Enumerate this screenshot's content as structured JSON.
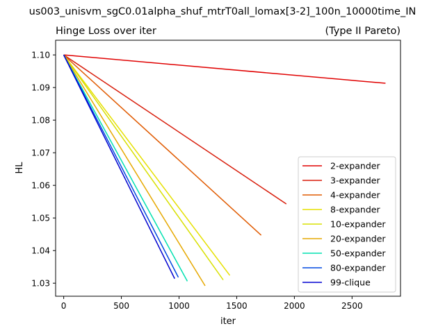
{
  "chart_data": {
    "type": "line",
    "suptitle": "us003_unisvm_sgC0.01alpha_shuf_mtrT0all_lomax[3-2]_100n_10000time_IN",
    "title_left": "Hinge Loss over iter",
    "title_right": "(Type II Pareto)",
    "xlabel": "iter",
    "ylabel": "HL",
    "xlim": [
      -70,
      2920
    ],
    "ylim": [
      1.026,
      1.1045
    ],
    "xticks": [
      0,
      500,
      1000,
      1500,
      2000,
      2500
    ],
    "xtick_labels": [
      "0",
      "500",
      "1000",
      "1500",
      "2000",
      "2500"
    ],
    "yticks": [
      1.03,
      1.04,
      1.05,
      1.06,
      1.07,
      1.08,
      1.09,
      1.1
    ],
    "ytick_labels": [
      "1.03",
      "1.04",
      "1.05",
      "1.06",
      "1.07",
      "1.08",
      "1.09",
      "1.10"
    ],
    "grid": false,
    "legend_position": "lower-right",
    "series": [
      {
        "name": "2-expander",
        "color": "#e00000",
        "x": [
          0,
          2790
        ],
        "y": [
          1.1,
          1.0913
        ]
      },
      {
        "name": "3-expander",
        "color": "#d81c0a",
        "x": [
          0,
          1930
        ],
        "y": [
          1.1,
          1.0543
        ]
      },
      {
        "name": "4-expander",
        "color": "#e05a00",
        "x": [
          0,
          1712
        ],
        "y": [
          1.1,
          1.0447
        ]
      },
      {
        "name": "8-expander",
        "color": "#e6e000",
        "x": [
          0,
          1440
        ],
        "y": [
          1.1,
          1.0324
        ]
      },
      {
        "name": "10-expander",
        "color": "#d8e000",
        "x": [
          0,
          1383
        ],
        "y": [
          1.1,
          1.031
        ]
      },
      {
        "name": "20-expander",
        "color": "#e6a800",
        "x": [
          0,
          1226
        ],
        "y": [
          1.1,
          1.0292
        ]
      },
      {
        "name": "50-expander",
        "color": "#00e0b0",
        "x": [
          0,
          1072
        ],
        "y": [
          1.1,
          1.0306
        ]
      },
      {
        "name": "80-expander",
        "color": "#0048e0",
        "x": [
          0,
          994
        ],
        "y": [
          1.1,
          1.0318
        ]
      },
      {
        "name": "99-clique",
        "color": "#0000d0",
        "x": [
          0,
          962
        ],
        "y": [
          1.1,
          1.0314
        ]
      }
    ]
  }
}
